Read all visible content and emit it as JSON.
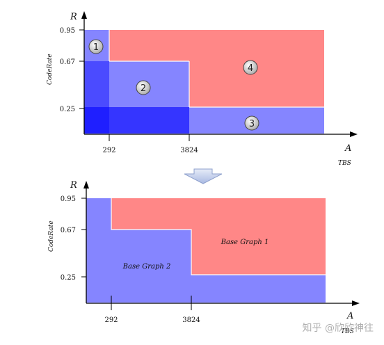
{
  "colors": {
    "red_region": "#ff8787",
    "blue_region": "#8585ff",
    "overlap_dark": "#1f1fff",
    "overlap_mid": "#4b4bff",
    "axis": "#000000",
    "arrow_fill": "#c7d2ee"
  },
  "top_diagram": {
    "y_axis_letter": "R",
    "y_axis_word": "CodeRate",
    "x_axis_letter": "A",
    "x_axis_word": "TBS",
    "y_ticks": [
      "0.95",
      "0.67",
      "0.25"
    ],
    "x_ticks": [
      "292",
      "3824"
    ],
    "regions": [
      "1",
      "2",
      "3",
      "4"
    ]
  },
  "bottom_diagram": {
    "y_axis_letter": "R",
    "y_axis_word": "CodeRate",
    "x_axis_letter": "A",
    "x_axis_word": "TBS",
    "y_ticks": [
      "0.95",
      "0.67",
      "0.25"
    ],
    "x_ticks": [
      "292",
      "3824"
    ],
    "base_graph_1_label": "Base Graph 1",
    "base_graph_2_label": "Base Graph 2"
  },
  "watermark": "知乎 @欣欣神往",
  "transition_arrow_icon": "down-arrow-icon"
}
